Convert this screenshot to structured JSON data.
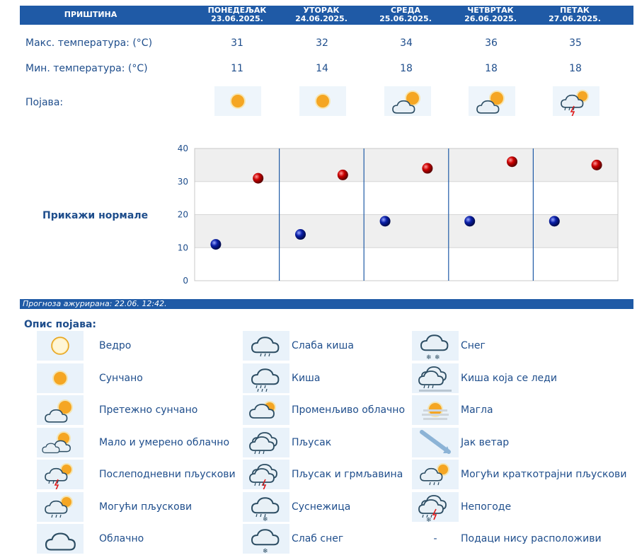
{
  "header": {
    "city": "ПРИШТИНА",
    "days": [
      {
        "name": "ПОНЕДЕЉАК",
        "date": "23.06.2025."
      },
      {
        "name": "УТОРАК",
        "date": "24.06.2025."
      },
      {
        "name": "СРЕДА",
        "date": "25.06.2025."
      },
      {
        "name": "ЧЕТВРТАК",
        "date": "26.06.2025."
      },
      {
        "name": "ПЕТАК",
        "date": "27.06.2025."
      }
    ]
  },
  "rows": {
    "max_label": "Макс. температура: (°C)",
    "min_label": "Мин. температура: (°C)",
    "phenomenon_label": "Појава:",
    "max_values": [
      "31",
      "32",
      "34",
      "36",
      "35"
    ],
    "min_values": [
      "11",
      "14",
      "18",
      "18",
      "18"
    ],
    "phenomenon_icons": [
      "sunny-icon",
      "sunny-icon",
      "mostly-sunny-icon",
      "mostly-sunny-icon",
      "afternoon-showers-icon"
    ]
  },
  "normals_link": "Прикажи нормале",
  "updated": "Прогноза ажурирана:  22.06. 12:42.",
  "legend": {
    "title": "Опис појава:",
    "items": [
      {
        "label": "Ведро",
        "icon": "clear-icon"
      },
      {
        "label": "Сунчано",
        "icon": "sunny-icon"
      },
      {
        "label": "Претежно сунчано",
        "icon": "mostly-sunny-icon"
      },
      {
        "label": "Мало и умерено облачно",
        "icon": "partly-cloudy-icon"
      },
      {
        "label": "Послеподневни пљускови",
        "icon": "afternoon-showers-icon"
      },
      {
        "label": "Могући пљускови",
        "icon": "possible-showers-icon"
      },
      {
        "label": "Облачно",
        "icon": "cloudy-icon"
      },
      {
        "label": "Слаба киша",
        "icon": "light-rain-icon"
      },
      {
        "label": "Киша",
        "icon": "rain-icon"
      },
      {
        "label": "Променљиво облачно",
        "icon": "variable-cloudy-icon"
      },
      {
        "label": "Пљусак",
        "icon": "shower-icon"
      },
      {
        "label": "Пљусак и грмљавина",
        "icon": "thunder-shower-icon"
      },
      {
        "label": "Суснежица",
        "icon": "sleet-icon"
      },
      {
        "label": "Слаб снег",
        "icon": "light-snow-icon"
      },
      {
        "label": "Снег",
        "icon": "snow-icon"
      },
      {
        "label": "Киша која се леди",
        "icon": "freezing-rain-icon"
      },
      {
        "label": "Магла",
        "icon": "fog-icon"
      },
      {
        "label": "Јак ветар",
        "icon": "strong-wind-icon"
      },
      {
        "label": "Могући краткотрајни пљускови",
        "icon": "possible-short-showers-icon"
      },
      {
        "label": "Непогоде",
        "icon": "storm-icon"
      },
      {
        "label": "Подаци нису расположиви",
        "icon": "-"
      }
    ]
  },
  "colors": {
    "header": "#1f5aa6",
    "max_point": "#cc0000",
    "min_point": "#0a1fa8",
    "text": "#1f4e8c"
  },
  "chart_data": {
    "type": "scatter",
    "categories": [
      "23.06.2025.",
      "24.06.2025.",
      "25.06.2025.",
      "26.06.2025.",
      "27.06.2025."
    ],
    "series": [
      {
        "values": [
          31,
          32,
          34,
          36,
          35
        ]
      },
      {
        "values": [
          11,
          14,
          18,
          18,
          18
        ]
      }
    ],
    "yticks": [
      "0",
      "10",
      "20",
      "30",
      "40"
    ],
    "ylim": [
      0,
      40
    ],
    "grid": true
  }
}
